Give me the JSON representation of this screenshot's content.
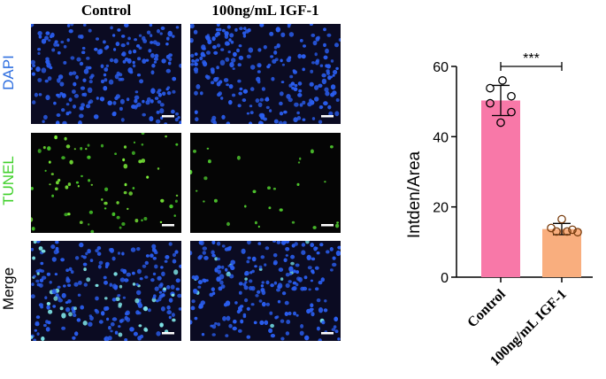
{
  "micrographs": {
    "columns": [
      "Control",
      "100ng/mL IGF-1"
    ],
    "rows": [
      {
        "label": "DAPI",
        "color": "#2f6fe0"
      },
      {
        "label": "TUNEL",
        "color": "#3fd02a"
      },
      {
        "label": "Merge",
        "color": "#000000"
      }
    ]
  },
  "chart_data": {
    "type": "bar",
    "categories": [
      "Control",
      "100ng/mL IGF-1"
    ],
    "values": [
      50.3,
      13.7
    ],
    "error": [
      4.3,
      1.6
    ],
    "points": [
      [
        56.0,
        53.8,
        51.5,
        49.5,
        47.0,
        44.0
      ],
      [
        16.5,
        14.0,
        13.5,
        13.0,
        13.0,
        12.8
      ]
    ],
    "colors": [
      "#f878a8",
      "#f9ae7e"
    ],
    "point_colors": [
      "#000000",
      "#7a3e10"
    ],
    "ylabel": "Intden/Area",
    "ylim": [
      0,
      60
    ],
    "yticks": [
      0,
      20,
      40,
      60
    ],
    "significance": "***",
    "grid": false
  }
}
